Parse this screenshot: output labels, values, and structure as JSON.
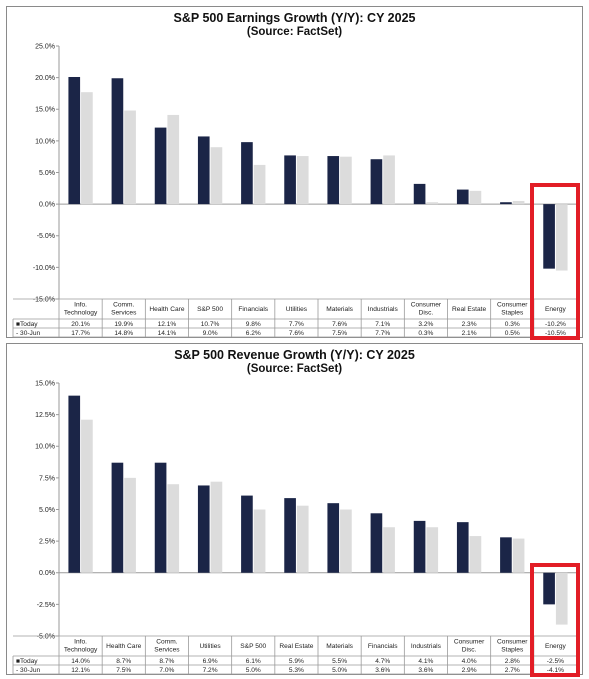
{
  "chart_data": [
    {
      "type": "bar",
      "title": "S&P 500 Earnings Growth (Y/Y): CY 2025",
      "subtitle": "(Source: FactSet)",
      "categories": [
        "Info.\nTechnology",
        "Comm.\nServices",
        "Health Care",
        "S&P 500",
        "Financials",
        "Utilities",
        "Materials",
        "Industrials",
        "Consumer\nDisc.",
        "Real Estate",
        "Consumer\nStaples",
        "Energy"
      ],
      "series": [
        {
          "name": "Today",
          "values": [
            20.1,
            19.9,
            12.1,
            10.7,
            9.8,
            7.7,
            7.6,
            7.1,
            3.2,
            2.3,
            0.3,
            -10.2
          ],
          "labels": [
            "20.1%",
            "19.9%",
            "12.1%",
            "10.7%",
            "9.8%",
            "7.7%",
            "7.6%",
            "7.1%",
            "3.2%",
            "2.3%",
            "0.3%",
            "-10.2%"
          ]
        },
        {
          "name": "30-Jun",
          "values": [
            17.7,
            14.8,
            14.1,
            9.0,
            6.2,
            7.6,
            7.5,
            7.7,
            0.3,
            2.1,
            0.5,
            -10.5
          ],
          "labels": [
            "17.7%",
            "14.8%",
            "14.1%",
            "9.0%",
            "6.2%",
            "7.6%",
            "7.5%",
            "7.7%",
            "0.3%",
            "2.1%",
            "0.5%",
            "-10.5%"
          ]
        }
      ],
      "legend_labels": [
        "■Today",
        "- 30-Jun"
      ],
      "ylim": [
        -15,
        25
      ],
      "yticks": [
        25,
        20,
        15,
        10,
        5,
        0,
        -5,
        -10,
        -15
      ],
      "ytick_labels": [
        "25.0%",
        "20.0%",
        "15.0%",
        "10.0%",
        "5.0%",
        "0.0%",
        "-5.0%",
        "-10.0%",
        "-15.0%"
      ],
      "highlighted_category": "Energy",
      "grid": false,
      "data_table": true
    },
    {
      "type": "bar",
      "title": "S&P 500 Revenue Growth (Y/Y): CY 2025",
      "subtitle": "(Source: FactSet)",
      "categories": [
        "Info.\nTechnology",
        "Health Care",
        "Comm.\nServices",
        "Utilities",
        "S&P 500",
        "Real Estate",
        "Materials",
        "Financials",
        "Industrials",
        "Consumer\nDisc.",
        "Consumer\nStaples",
        "Energy"
      ],
      "series": [
        {
          "name": "Today",
          "values": [
            14.0,
            8.7,
            8.7,
            6.9,
            6.1,
            5.9,
            5.5,
            4.7,
            4.1,
            4.0,
            2.8,
            -2.5
          ],
          "labels": [
            "14.0%",
            "8.7%",
            "8.7%",
            "6.9%",
            "6.1%",
            "5.9%",
            "5.5%",
            "4.7%",
            "4.1%",
            "4.0%",
            "2.8%",
            "-2.5%"
          ]
        },
        {
          "name": "30-Jun",
          "values": [
            12.1,
            7.5,
            7.0,
            7.2,
            5.0,
            5.3,
            5.0,
            3.6,
            3.6,
            2.9,
            2.7,
            -4.1
          ],
          "labels": [
            "12.1%",
            "7.5%",
            "7.0%",
            "7.2%",
            "5.0%",
            "5.3%",
            "5.0%",
            "3.6%",
            "3.6%",
            "2.9%",
            "2.7%",
            "-4.1%"
          ]
        }
      ],
      "legend_labels": [
        "■Today",
        "- 30-Jun"
      ],
      "ylim": [
        -5,
        15
      ],
      "yticks": [
        15,
        12.5,
        10,
        7.5,
        5,
        2.5,
        0,
        -2.5,
        -5
      ],
      "ytick_labels": [
        "15.0%",
        "12.5%",
        "10.0%",
        "7.5%",
        "5.0%",
        "2.5%",
        "0.0%",
        "-2.5%",
        "-5.0%"
      ],
      "highlighted_category": "Energy",
      "grid": false,
      "data_table": true
    }
  ],
  "colors": {
    "today": "#1b2547",
    "june": "#dcdcdc",
    "highlight": "#e21d26",
    "axis": "#9a9a9a",
    "text": "#222222"
  }
}
